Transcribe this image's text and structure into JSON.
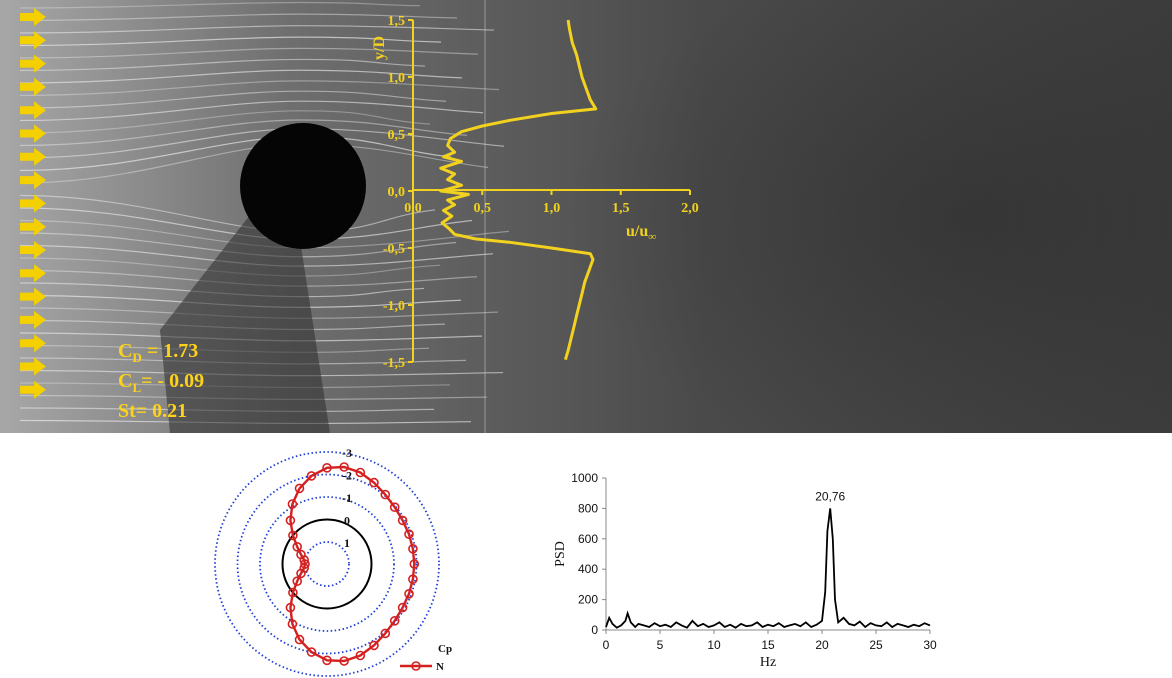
{
  "colors": {
    "profile": "#f2d21e",
    "arrows": "#f5d000",
    "cp_curve": "#d42020",
    "ref_circle": "#000000",
    "grid_circles": "#1f3fd8",
    "psd_line": "#000000"
  },
  "coefficients": {
    "cd_label": "C",
    "cd_sub": "D",
    "cd_value": " = 1.73",
    "cl_label": "C",
    "cl_sub": "L",
    "cl_value": "= - 0.09",
    "st_text": "St= 0.21"
  },
  "chart_data": [
    {
      "type": "line",
      "name_id": "velocity-profile",
      "xlabel_main": "u/u",
      "xlabel_sub": "∞",
      "ylabel": "y/D",
      "xlim": [
        0,
        2
      ],
      "ylim": [
        -1.5,
        1.5
      ],
      "x_ticks": [
        "0,0",
        "0,5",
        "1,0",
        "1,5",
        "2,0"
      ],
      "y_ticks": [
        "1,5",
        "1,0",
        "0,5",
        "0,0",
        "-0,5",
        "-1,0",
        "-1,5"
      ],
      "y_tick_values": [
        1.5,
        1.0,
        0.5,
        0.0,
        -0.5,
        -1.0,
        -1.5
      ],
      "x_tick_values": [
        0,
        0.5,
        1.0,
        1.5,
        2.0
      ],
      "points": [
        [
          1.12,
          1.5
        ],
        [
          1.13,
          1.42
        ],
        [
          1.15,
          1.3
        ],
        [
          1.18,
          1.2
        ],
        [
          1.2,
          1.1
        ],
        [
          1.22,
          1.0
        ],
        [
          1.25,
          0.9
        ],
        [
          1.28,
          0.8
        ],
        [
          1.32,
          0.72
        ],
        [
          1.0,
          0.68
        ],
        [
          0.7,
          0.62
        ],
        [
          0.5,
          0.57
        ],
        [
          0.35,
          0.52
        ],
        [
          0.27,
          0.46
        ],
        [
          0.25,
          0.4
        ],
        [
          0.3,
          0.34
        ],
        [
          0.22,
          0.3
        ],
        [
          0.35,
          0.26
        ],
        [
          0.2,
          0.2
        ],
        [
          0.3,
          0.15
        ],
        [
          0.25,
          0.1
        ],
        [
          0.35,
          0.05
        ],
        [
          0.2,
          0.0
        ],
        [
          0.4,
          -0.03
        ],
        [
          0.25,
          -0.08
        ],
        [
          0.3,
          -0.12
        ],
        [
          0.22,
          -0.17
        ],
        [
          0.28,
          -0.22
        ],
        [
          0.21,
          -0.28
        ],
        [
          0.26,
          -0.33
        ],
        [
          0.3,
          -0.38
        ],
        [
          0.45,
          -0.42
        ],
        [
          0.7,
          -0.45
        ],
        [
          1.0,
          -0.5
        ],
        [
          1.28,
          -0.55
        ],
        [
          1.3,
          -0.6
        ],
        [
          1.27,
          -0.7
        ],
        [
          1.24,
          -0.8
        ],
        [
          1.22,
          -0.9
        ],
        [
          1.2,
          -1.0
        ],
        [
          1.18,
          -1.1
        ],
        [
          1.16,
          -1.2
        ],
        [
          1.14,
          -1.3
        ],
        [
          1.12,
          -1.4
        ],
        [
          1.1,
          -1.48
        ]
      ]
    },
    {
      "type": "line",
      "name_id": "cp-polar",
      "legend_title": "Cp",
      "series_name": "N",
      "ring_labels": [
        "-3",
        "-2",
        "-1",
        "0",
        "1"
      ],
      "ring_values": [
        -3,
        -2,
        -1,
        0,
        1
      ],
      "r_min": -3,
      "r_max": 1,
      "reference_value": 0,
      "angles_deg": [
        0,
        10,
        20,
        30,
        40,
        50,
        60,
        70,
        80,
        90,
        100,
        110,
        120,
        130,
        140,
        150,
        160,
        170,
        180,
        190,
        200,
        210,
        220,
        230,
        240,
        250,
        260,
        270,
        280,
        290,
        300,
        310,
        320,
        330,
        340,
        350
      ],
      "cp_values": [
        1.0,
        0.95,
        0.75,
        0.45,
        0.0,
        -0.55,
        -1.1,
        -1.6,
        -2.0,
        -2.3,
        -2.4,
        -2.35,
        -2.2,
        -2.05,
        -1.95,
        -1.9,
        -1.9,
        -1.9,
        -1.9,
        -1.9,
        -1.9,
        -1.9,
        -1.95,
        -2.05,
        -2.2,
        -2.35,
        -2.4,
        -2.3,
        -2.0,
        -1.6,
        -1.1,
        -0.55,
        0.0,
        0.45,
        0.75,
        0.95
      ]
    },
    {
      "type": "line",
      "name_id": "psd",
      "xlabel": "Hz",
      "ylabel": "PSD",
      "xlim": [
        0,
        30
      ],
      "ylim": [
        0,
        1000
      ],
      "x_ticks": [
        0,
        5,
        10,
        15,
        20,
        25,
        30
      ],
      "y_ticks": [
        0,
        200,
        400,
        600,
        800,
        1000
      ],
      "peak_label": "20,76",
      "peak": {
        "x": 20.76,
        "y": 800
      },
      "x": [
        0,
        0.3,
        0.6,
        1.0,
        1.4,
        1.8,
        2.0,
        2.3,
        2.7,
        3.0,
        3.5,
        4.0,
        4.5,
        5.0,
        5.5,
        6.0,
        6.5,
        7.0,
        7.5,
        8.0,
        8.5,
        9.0,
        9.5,
        10.0,
        10.5,
        11.0,
        11.5,
        12.0,
        12.5,
        13.0,
        13.5,
        14.0,
        14.5,
        15.0,
        15.5,
        16.0,
        16.5,
        17.0,
        17.5,
        18.0,
        18.5,
        19.0,
        19.5,
        20.0,
        20.3,
        20.5,
        20.76,
        21.0,
        21.2,
        21.5,
        22.0,
        22.5,
        23.0,
        23.5,
        24.0,
        24.5,
        25.0,
        25.5,
        26.0,
        26.5,
        27.0,
        27.5,
        28.0,
        28.5,
        29.0,
        29.5,
        30.0
      ],
      "y": [
        20,
        80,
        40,
        15,
        30,
        60,
        110,
        50,
        20,
        40,
        30,
        20,
        45,
        25,
        35,
        20,
        50,
        30,
        15,
        60,
        25,
        40,
        20,
        30,
        50,
        20,
        35,
        15,
        40,
        25,
        30,
        50,
        20,
        35,
        25,
        45,
        20,
        30,
        40,
        25,
        50,
        20,
        35,
        60,
        250,
        650,
        800,
        600,
        200,
        50,
        80,
        40,
        30,
        55,
        20,
        45,
        30,
        25,
        50,
        20,
        40,
        30,
        20,
        35,
        25,
        45,
        30
      ]
    }
  ]
}
